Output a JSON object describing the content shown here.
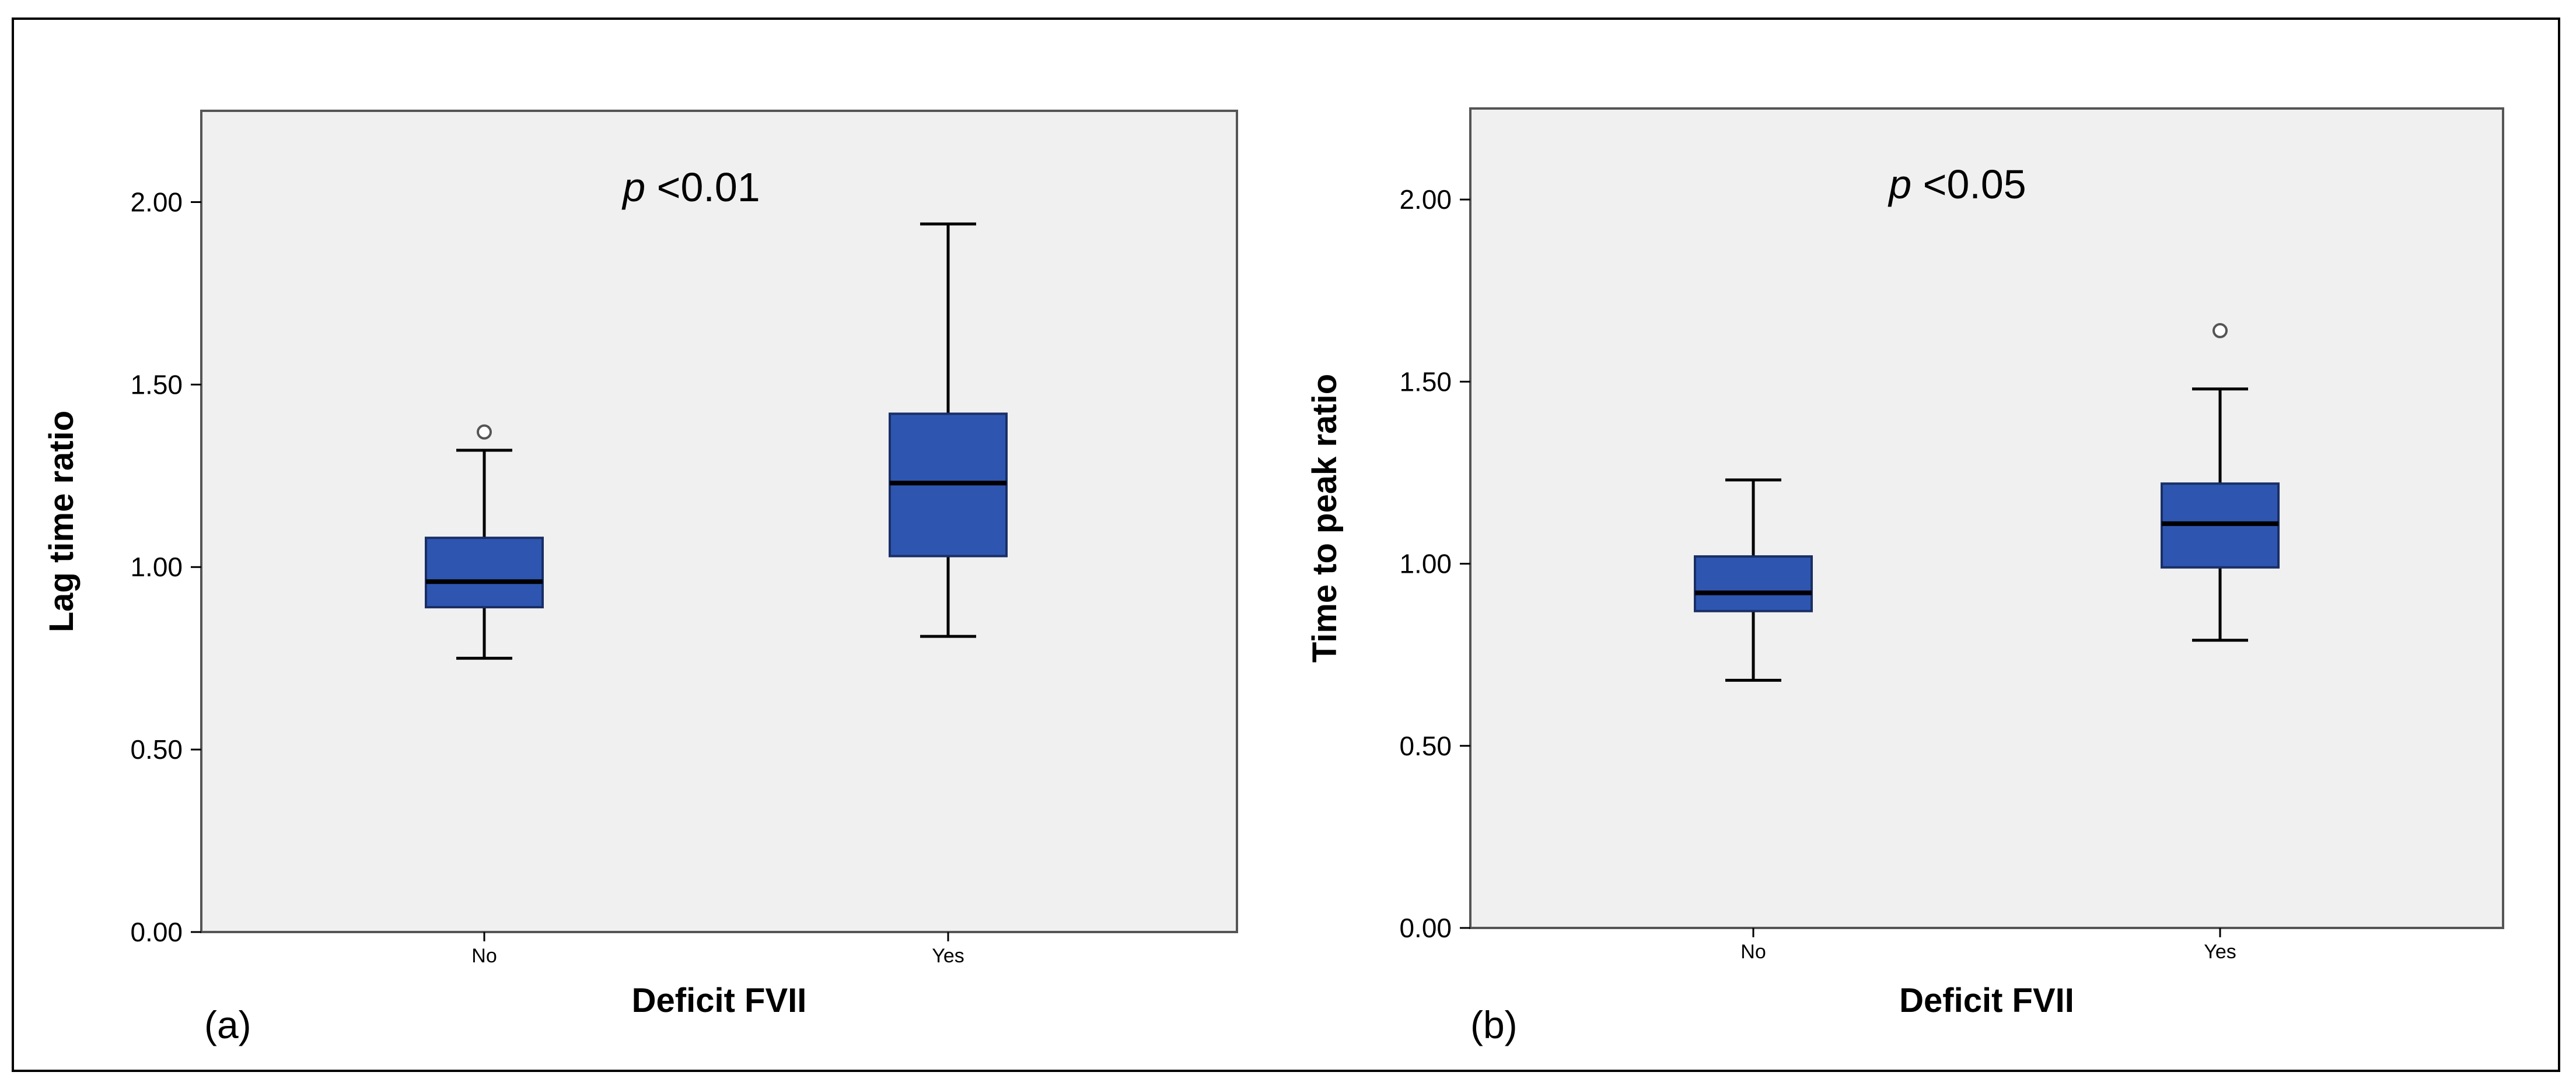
{
  "chart_data": [
    {
      "type": "box",
      "panel_label": "(a)",
      "title": "",
      "xlabel": "Deficit FVII",
      "ylabel": "Lag time ratio",
      "annotation": {
        "italic": "p",
        "text": " <0.01"
      },
      "categories": [
        "No",
        "Yes"
      ],
      "ylim": [
        0,
        2.25
      ],
      "yticks": [
        0.0,
        0.5,
        1.0,
        1.5,
        2.0
      ],
      "ytick_labels": [
        "0.00",
        "0.50",
        "1.00",
        "1.50",
        "2.00"
      ],
      "boxes": [
        {
          "category": "No",
          "whisker_low": 0.75,
          "q1": 0.89,
          "median": 0.96,
          "q3": 1.08,
          "whisker_high": 1.32,
          "outliers": [
            1.37
          ]
        },
        {
          "category": "Yes",
          "whisker_low": 0.81,
          "q1": 1.03,
          "median": 1.23,
          "q3": 1.42,
          "whisker_high": 1.94,
          "outliers": []
        }
      ]
    },
    {
      "type": "box",
      "panel_label": "(b)",
      "title": "",
      "xlabel": "Deficit FVII",
      "ylabel": "Time to peak ratio",
      "annotation": {
        "italic": "p",
        "text": " <0.05"
      },
      "categories": [
        "No",
        "Yes"
      ],
      "ylim": [
        0,
        2.25
      ],
      "yticks": [
        0.0,
        0.5,
        1.0,
        1.5,
        2.0
      ],
      "ytick_labels": [
        "0.00",
        "0.50",
        "1.00",
        "1.50",
        "2.00"
      ],
      "boxes": [
        {
          "category": "No",
          "whisker_low": 0.68,
          "q1": 0.87,
          "median": 0.92,
          "q3": 1.02,
          "whisker_high": 1.23,
          "outliers": []
        },
        {
          "category": "Yes",
          "whisker_low": 0.79,
          "q1": 0.99,
          "median": 1.11,
          "q3": 1.22,
          "whisker_high": 1.48,
          "outliers": [
            1.64
          ]
        }
      ]
    }
  ],
  "colors": {
    "box_fill": "#2e56b0",
    "plot_bg": "#f0f0f0",
    "line": "#000000",
    "outlier_fill": "#ffffff"
  }
}
